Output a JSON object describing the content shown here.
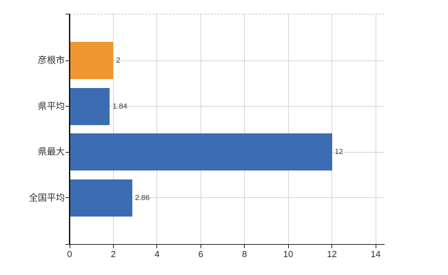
{
  "chart_data": {
    "type": "bar",
    "orientation": "horizontal",
    "title": "",
    "categories": [
      "彦根市",
      "県平均",
      "県最大",
      "全国平均"
    ],
    "values": [
      2,
      1.84,
      12,
      2.86
    ],
    "data_labels": [
      "2",
      "1.84",
      "12",
      "2.86"
    ],
    "bar_colors": [
      "#ee9630",
      "#3c6db3",
      "#3c6db3",
      "#3c6db3"
    ],
    "xlabel": "",
    "ylabel": "",
    "xlim": [
      0,
      14
    ],
    "x_ticks": [
      0,
      2,
      4,
      6,
      8,
      10,
      12,
      14
    ],
    "x_tick_labels": [
      "0",
      "2",
      "4",
      "6",
      "8",
      "10",
      "12",
      "14"
    ],
    "grid": "on",
    "legend": "none"
  },
  "colors": {
    "background": "#ffffff",
    "axis": "#1a1a1a",
    "gridline": "#d4d4d4",
    "plot_top_border": "#c8c8c8",
    "tick_text": "#2e2e2e",
    "value_text": "#3a3a3a",
    "bar_orange": "#ee9630",
    "bar_blue": "#3c6db3"
  }
}
